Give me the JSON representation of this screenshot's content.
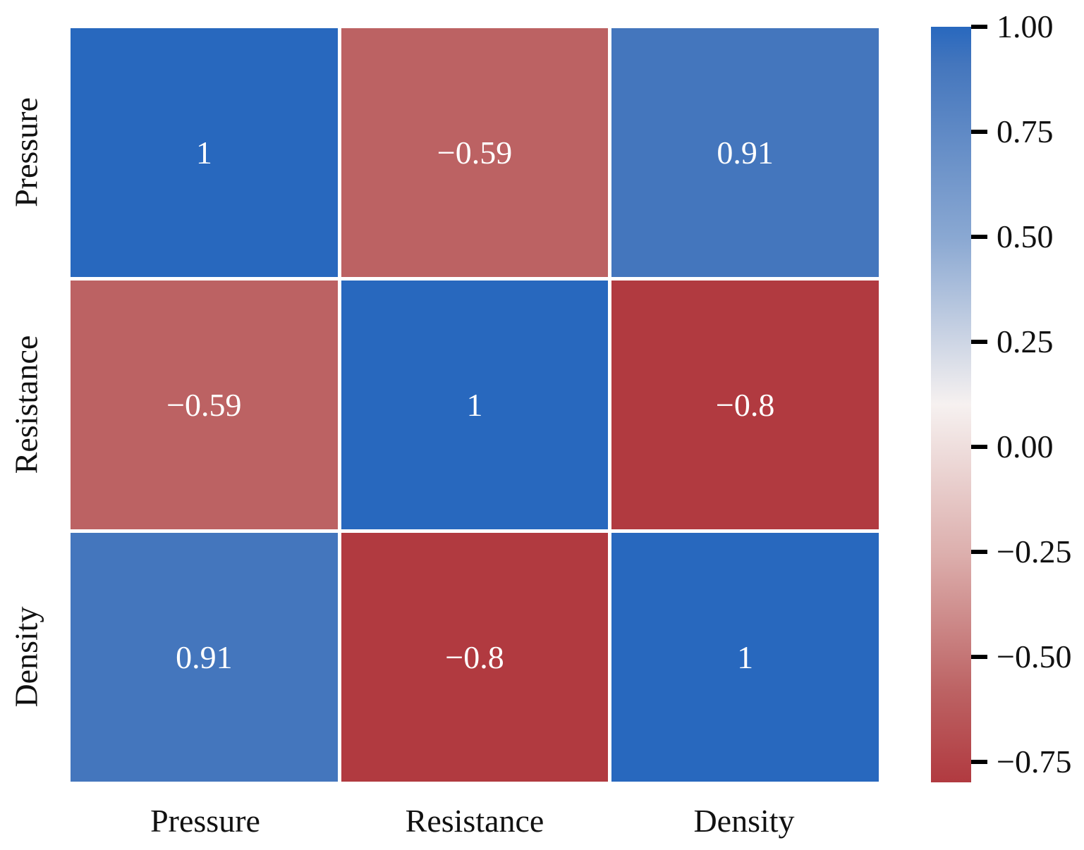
{
  "chart_data": {
    "type": "heatmap",
    "title": "",
    "categories": [
      "Pressure",
      "Resistance",
      "Density"
    ],
    "x_labels": [
      "Pressure",
      "Resistance",
      "Density"
    ],
    "y_labels": [
      "Pressure",
      "Resistance",
      "Density"
    ],
    "matrix": [
      [
        1,
        -0.59,
        0.91
      ],
      [
        -0.59,
        1,
        -0.8
      ],
      [
        0.91,
        -0.8,
        1
      ]
    ],
    "vmin": -0.8,
    "vmax": 1.0,
    "grid_gap_color": "#ffffff",
    "annotation_text_color": "#ffffff",
    "cells": [
      {
        "row": "Pressure",
        "col": "Pressure",
        "value": 1,
        "label": "1",
        "color": "#2868be"
      },
      {
        "row": "Pressure",
        "col": "Resistance",
        "value": -0.59,
        "label": "−0.59",
        "color": "#bc6263"
      },
      {
        "row": "Pressure",
        "col": "Density",
        "value": 0.91,
        "label": "0.91",
        "color": "#4476bd"
      },
      {
        "row": "Resistance",
        "col": "Pressure",
        "value": -0.59,
        "label": "−0.59",
        "color": "#bc6263"
      },
      {
        "row": "Resistance",
        "col": "Resistance",
        "value": 1,
        "label": "1",
        "color": "#2868be"
      },
      {
        "row": "Resistance",
        "col": "Density",
        "value": -0.8,
        "label": "−0.8",
        "color": "#b13a40"
      },
      {
        "row": "Density",
        "col": "Pressure",
        "value": 0.91,
        "label": "0.91",
        "color": "#4476bd"
      },
      {
        "row": "Density",
        "col": "Resistance",
        "value": -0.8,
        "label": "−0.8",
        "color": "#b13a40"
      },
      {
        "row": "Density",
        "col": "Density",
        "value": 1,
        "label": "1",
        "color": "#2868be"
      }
    ],
    "colorbar": {
      "orientation": "vertical",
      "position": "right",
      "ticks": [
        "1.00",
        "0.75",
        "0.50",
        "0.25",
        "0.00",
        "−0.25",
        "−0.50",
        "−0.75"
      ],
      "tick_color": "#000000",
      "gradient": [
        {
          "pos": 0,
          "color": "#2868be"
        },
        {
          "pos": 5,
          "color": "#4476bd"
        },
        {
          "pos": 28,
          "color": "#8aa8d2"
        },
        {
          "pos": 50,
          "color": "#f6f1f0"
        },
        {
          "pos": 70,
          "color": "#dcaeac"
        },
        {
          "pos": 88,
          "color": "#bc6263"
        },
        {
          "pos": 100,
          "color": "#b13a40"
        }
      ]
    }
  }
}
